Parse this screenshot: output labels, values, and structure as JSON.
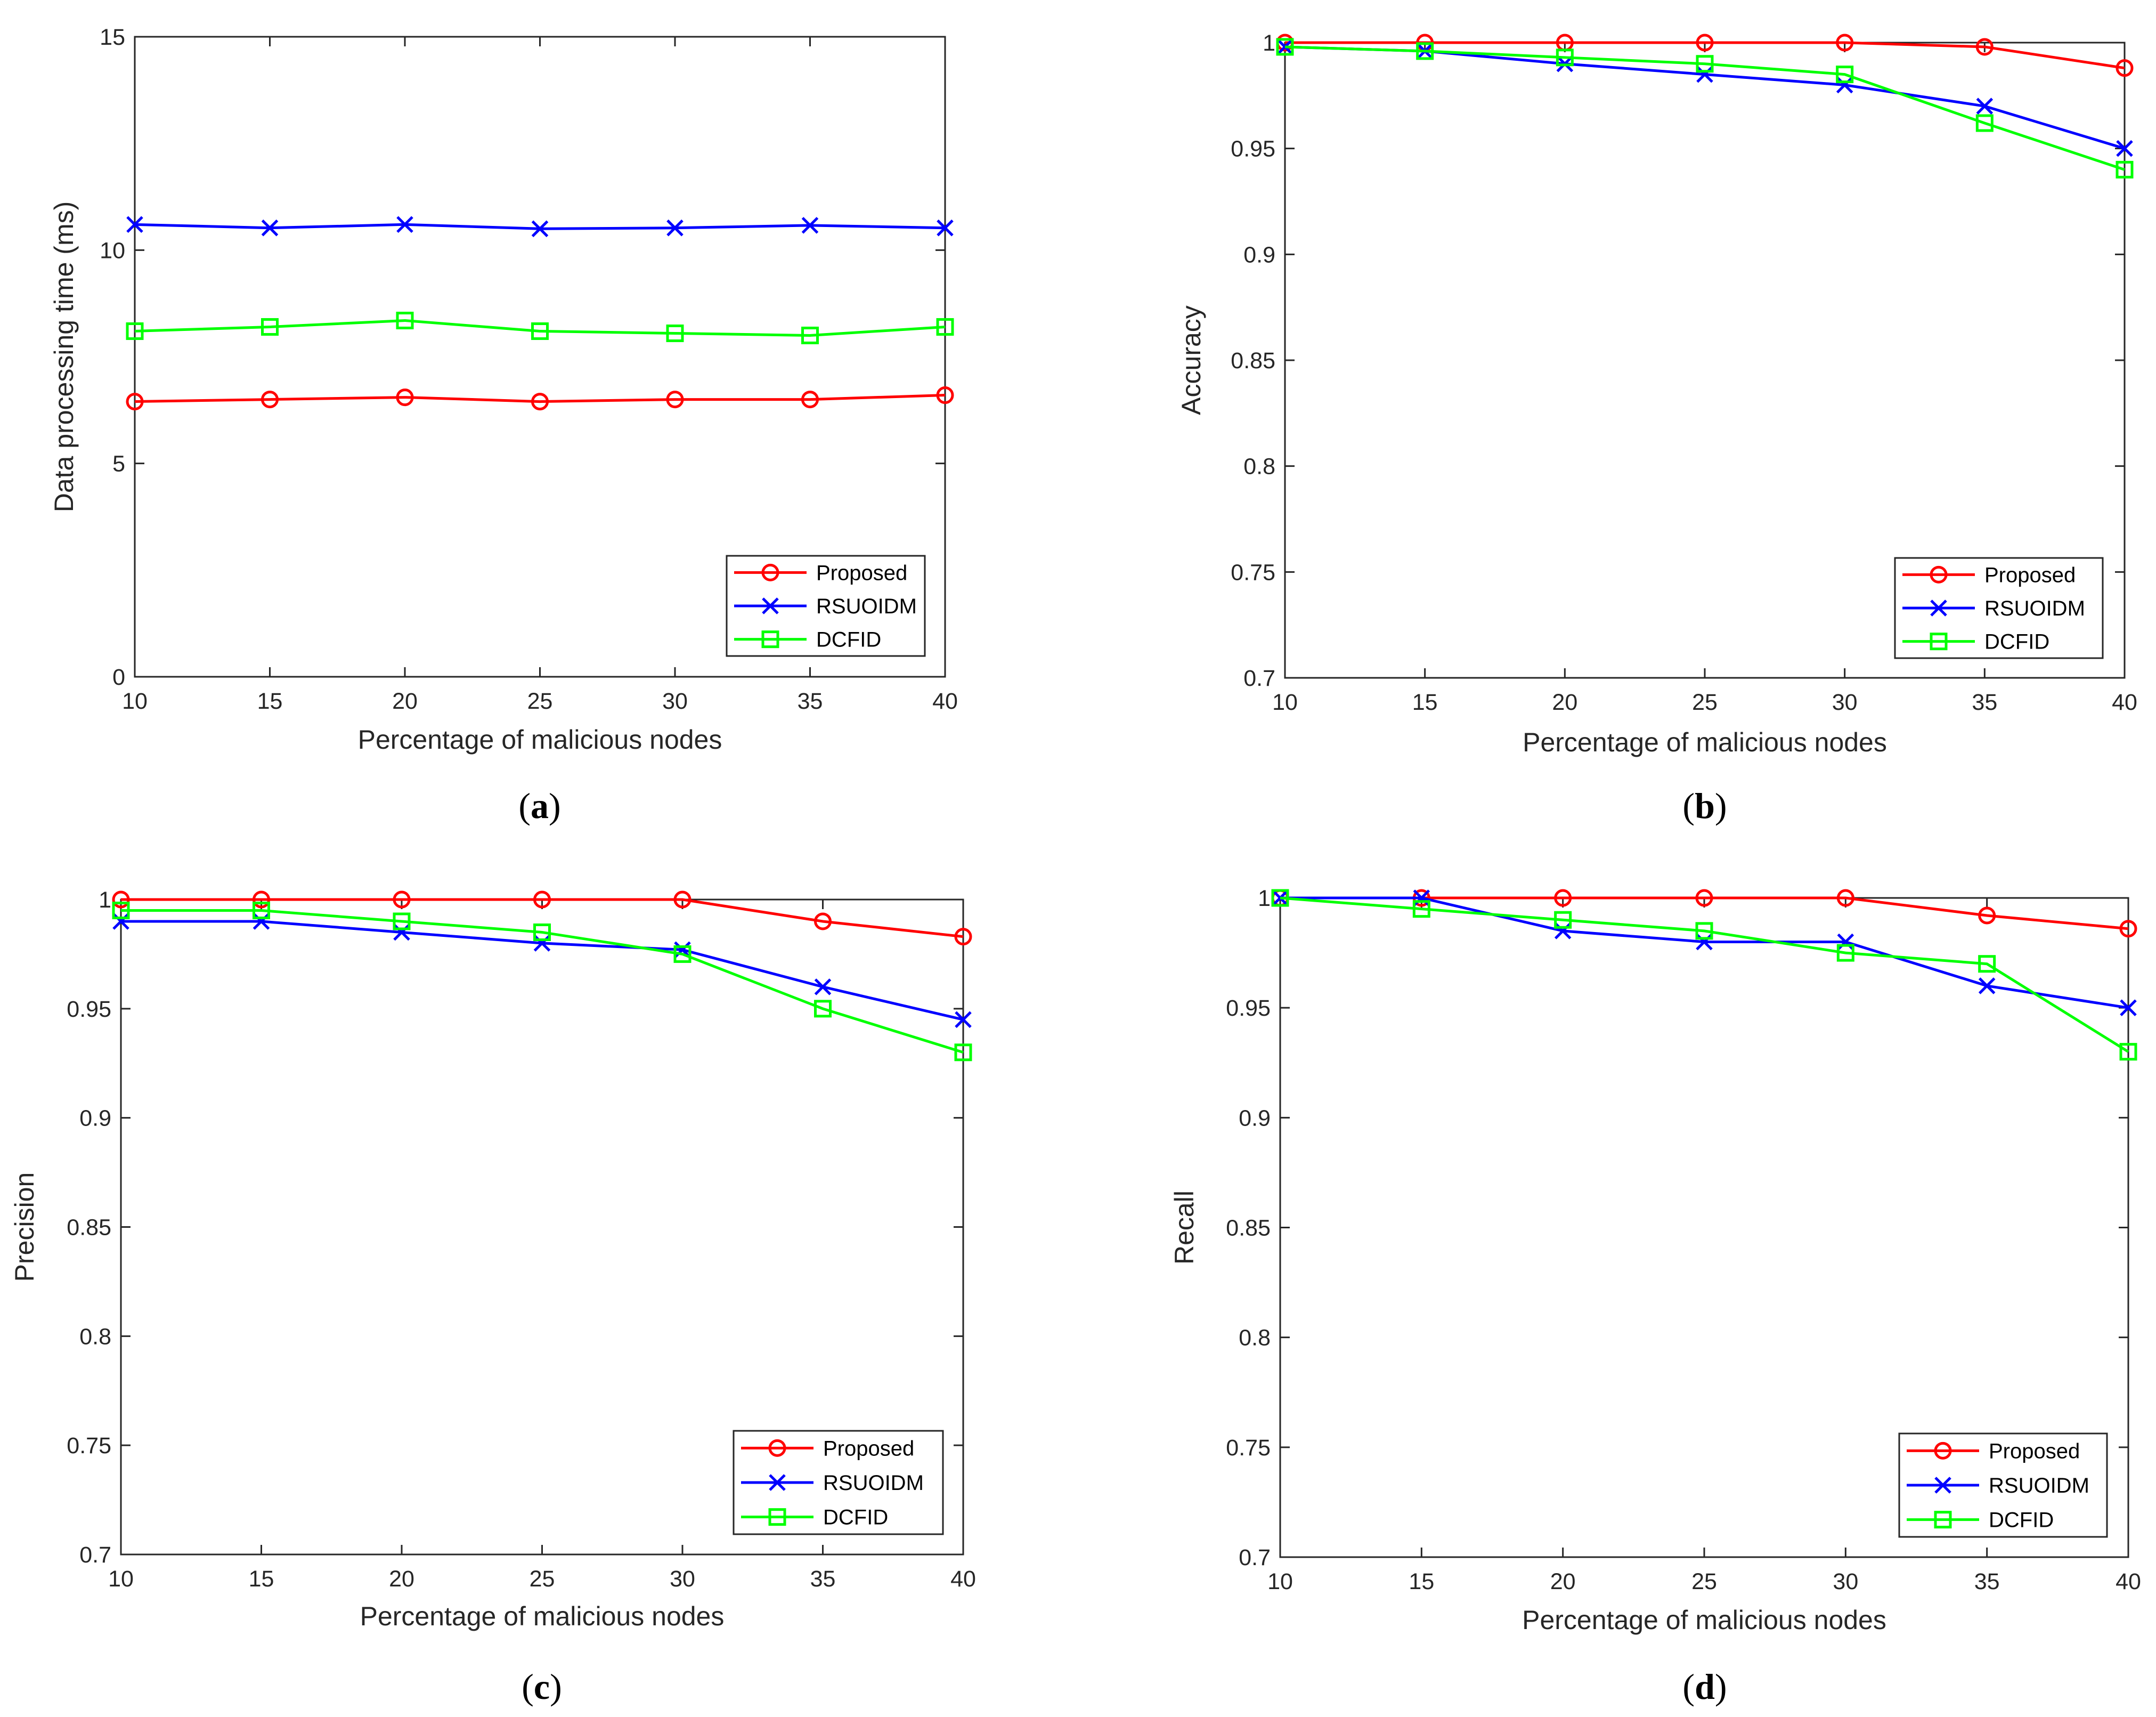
{
  "chart_data": [
    {
      "type": "line",
      "panel": "a",
      "caption_open": "(",
      "caption_letter": "a",
      "caption_close": ")",
      "xlabel": "Percentage of malicious nodes",
      "ylabel": "Data processing time (ms)",
      "x": [
        10,
        15,
        20,
        25,
        30,
        35,
        40
      ],
      "xlim": [
        10,
        40
      ],
      "ylim": [
        0,
        15
      ],
      "xticks": [
        10,
        15,
        20,
        25,
        30,
        35,
        40
      ],
      "yticks": [
        0,
        5,
        10,
        15
      ],
      "ytick_labels": [
        "0",
        "5",
        "10",
        "15"
      ],
      "legend_position": "bottom-right",
      "series": [
        {
          "name": "Proposed",
          "color": "#ff0000",
          "marker": "circle",
          "values": [
            6.45,
            6.5,
            6.55,
            6.45,
            6.5,
            6.5,
            6.6
          ]
        },
        {
          "name": "RSUOIDM",
          "color": "#0000ff",
          "marker": "x",
          "values": [
            10.6,
            10.52,
            10.6,
            10.5,
            10.52,
            10.58,
            10.52
          ]
        },
        {
          "name": "DCFID",
          "color": "#00ff00",
          "marker": "square",
          "values": [
            8.1,
            8.2,
            8.35,
            8.1,
            8.05,
            8.0,
            8.2
          ]
        }
      ]
    },
    {
      "type": "line",
      "panel": "b",
      "caption_open": "(",
      "caption_letter": "b",
      "caption_close": ")",
      "xlabel": "Percentage of malicious nodes",
      "ylabel": "Accuracy",
      "x": [
        10,
        15,
        20,
        25,
        30,
        35,
        40
      ],
      "xlim": [
        10,
        40
      ],
      "ylim": [
        0.7,
        1.0
      ],
      "xticks": [
        10,
        15,
        20,
        25,
        30,
        35,
        40
      ],
      "yticks": [
        0.7,
        0.75,
        0.8,
        0.85,
        0.9,
        0.95,
        1.0
      ],
      "ytick_labels": [
        "0.7",
        "0.75",
        "0.8",
        "0.85",
        "0.9",
        "0.95",
        "1"
      ],
      "legend_position": "bottom-right",
      "series": [
        {
          "name": "Proposed",
          "color": "#ff0000",
          "marker": "circle",
          "values": [
            1.0,
            1.0,
            1.0,
            1.0,
            1.0,
            0.998,
            0.988
          ]
        },
        {
          "name": "RSUOIDM",
          "color": "#0000ff",
          "marker": "x",
          "values": [
            0.998,
            0.996,
            0.99,
            0.985,
            0.98,
            0.97,
            0.95
          ]
        },
        {
          "name": "DCFID",
          "color": "#00ff00",
          "marker": "square",
          "values": [
            0.998,
            0.996,
            0.993,
            0.99,
            0.985,
            0.962,
            0.94
          ]
        }
      ]
    },
    {
      "type": "line",
      "panel": "c",
      "caption_open": "(",
      "caption_letter": "c",
      "caption_close": ")",
      "xlabel": "Percentage of malicious nodes",
      "ylabel": "Precision",
      "x": [
        10,
        15,
        20,
        25,
        30,
        35,
        40
      ],
      "xlim": [
        10,
        40
      ],
      "ylim": [
        0.7,
        1.0
      ],
      "xticks": [
        10,
        15,
        20,
        25,
        30,
        35,
        40
      ],
      "yticks": [
        0.7,
        0.75,
        0.8,
        0.85,
        0.9,
        0.95,
        1.0
      ],
      "ytick_labels": [
        "0.7",
        "0.75",
        "0.8",
        "0.85",
        "0.9",
        "0.95",
        "1"
      ],
      "legend_position": "bottom-right",
      "series": [
        {
          "name": "Proposed",
          "color": "#ff0000",
          "marker": "circle",
          "values": [
            1.0,
            1.0,
            1.0,
            1.0,
            1.0,
            0.99,
            0.983
          ]
        },
        {
          "name": "RSUOIDM",
          "color": "#0000ff",
          "marker": "x",
          "values": [
            0.99,
            0.99,
            0.985,
            0.98,
            0.977,
            0.96,
            0.945
          ]
        },
        {
          "name": "DCFID",
          "color": "#00ff00",
          "marker": "square",
          "values": [
            0.995,
            0.995,
            0.99,
            0.985,
            0.975,
            0.95,
            0.93
          ]
        }
      ]
    },
    {
      "type": "line",
      "panel": "d",
      "caption_open": "(",
      "caption_letter": "d",
      "caption_close": ")",
      "xlabel": "Percentage of malicious nodes",
      "ylabel": "Recall",
      "x": [
        10,
        15,
        20,
        25,
        30,
        35,
        40
      ],
      "xlim": [
        10,
        40
      ],
      "ylim": [
        0.7,
        1.0
      ],
      "xticks": [
        10,
        15,
        20,
        25,
        30,
        35,
        40
      ],
      "yticks": [
        0.7,
        0.75,
        0.8,
        0.85,
        0.9,
        0.95,
        1.0
      ],
      "ytick_labels": [
        "0.7",
        "0.75",
        "0.8",
        "0.85",
        "0.9",
        "0.95",
        "1"
      ],
      "legend_position": "bottom-right",
      "series": [
        {
          "name": "Proposed",
          "color": "#ff0000",
          "marker": "circle",
          "values": [
            1.0,
            1.0,
            1.0,
            1.0,
            1.0,
            0.992,
            0.986
          ]
        },
        {
          "name": "RSUOIDM",
          "color": "#0000ff",
          "marker": "x",
          "values": [
            1.0,
            1.0,
            0.985,
            0.98,
            0.98,
            0.96,
            0.95
          ]
        },
        {
          "name": "DCFID",
          "color": "#00ff00",
          "marker": "square",
          "values": [
            1.0,
            0.995,
            0.99,
            0.985,
            0.975,
            0.97,
            0.93
          ]
        }
      ]
    }
  ]
}
